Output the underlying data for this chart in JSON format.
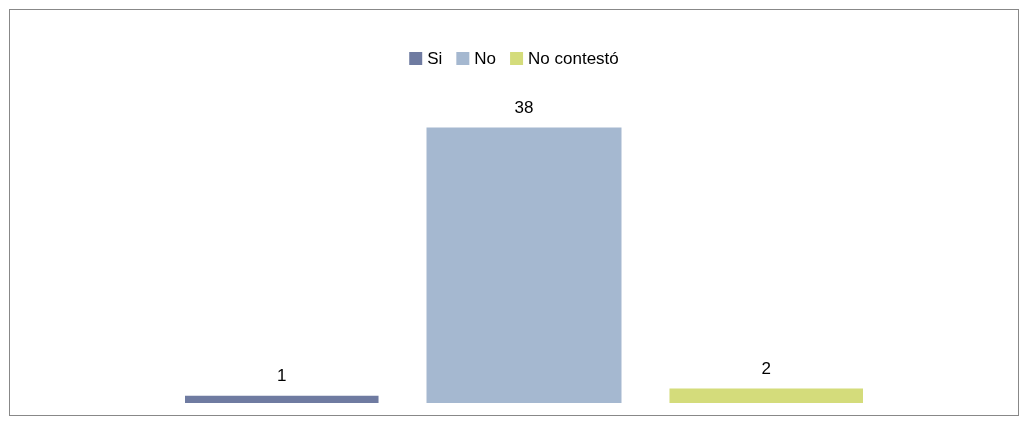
{
  "chart_data": {
    "type": "bar",
    "categories": [
      null
    ],
    "series": [
      {
        "name": "Si",
        "color": "#6f7ba1",
        "values": [
          1
        ]
      },
      {
        "name": "No",
        "color": "#a5b8d0",
        "values": [
          38
        ]
      },
      {
        "name": "No contestó",
        "color": "#d4dc7b",
        "values": [
          2
        ]
      }
    ],
    "data_labels": true,
    "legend": "top"
  }
}
